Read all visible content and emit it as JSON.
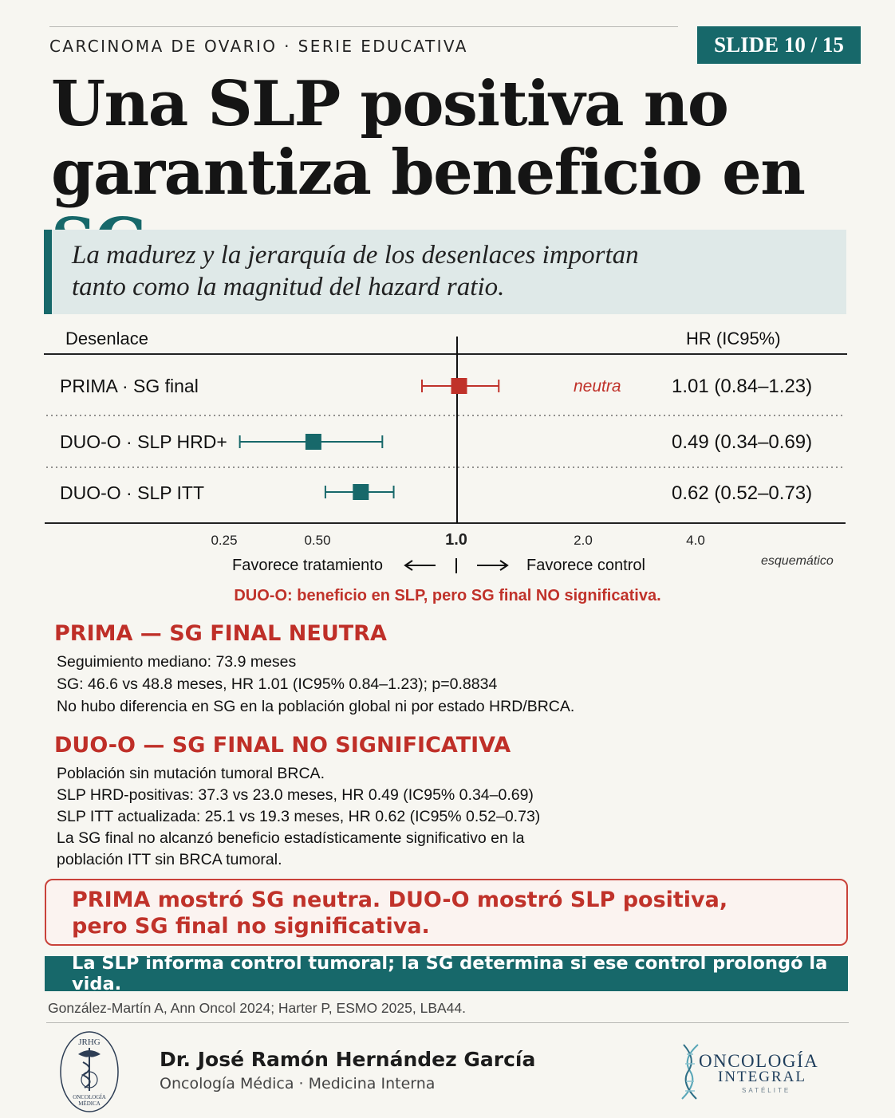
{
  "header": {
    "series": "CARCINOMA DE OVARIO · SERIE EDUCATIVA",
    "slide": "SLIDE 10 / 15"
  },
  "title": {
    "line1": "Una SLP positiva no",
    "line2_main": "garantiza beneficio en ",
    "line2_accent": "SG"
  },
  "subtitle": {
    "line1": "La madurez y la jerarquía de los desenlaces importan",
    "line2": "tanto como la magnitud del hazard ratio."
  },
  "chart_data": {
    "type": "forest",
    "scale": "log",
    "columns": {
      "outcome": "Desenlace",
      "estimate": "HR (IC95%)"
    },
    "rows": [
      {
        "label": "PRIMA · SG final",
        "hr": 1.01,
        "lo": 0.84,
        "hi": 1.23,
        "text": "1.01 (0.84–1.23)",
        "note": "neutra",
        "color": "#c0322a"
      },
      {
        "label": "DUO-O · SLP HRD+",
        "hr": 0.49,
        "lo": 0.34,
        "hi": 0.69,
        "text": "0.49 (0.34–0.69)",
        "note": "",
        "color": "#17686a"
      },
      {
        "label": "DUO-O · SLP ITT",
        "hr": 0.62,
        "lo": 0.52,
        "hi": 0.73,
        "text": "0.62 (0.52–0.73)",
        "note": "",
        "color": "#17686a"
      }
    ],
    "reference_line": 1.0,
    "ticks": [
      {
        "label": "0.25"
      },
      {
        "label": "0.50"
      },
      {
        "label": "1.0"
      },
      {
        "label": "2.0"
      },
      {
        "label": "4.0"
      }
    ],
    "favors_left": "Favorece tratamiento",
    "favors_right": "Favorece control",
    "footnote": "esquemático"
  },
  "chart_note": "DUO-O: beneficio en SLP, pero SG final NO significativa.",
  "sections": [
    {
      "heading": "PRIMA — SG FINAL NEUTRA",
      "lines": [
        "Seguimiento mediano: 73.9 meses",
        "SG: 46.6 vs 48.8 meses, HR 1.01 (IC95% 0.84–1.23); p=0.8834",
        "No hubo diferencia en SG en la población global ni por estado HRD/BRCA."
      ]
    },
    {
      "heading": "DUO-O — SG FINAL NO SIGNIFICATIVA",
      "lines": [
        "Población sin mutación tumoral BRCA.",
        "SLP HRD-positivas: 37.3 vs 23.0 meses, HR 0.49 (IC95% 0.34–0.69)",
        "SLP ITT actualizada: 25.1 vs 19.3 meses, HR 0.62 (IC95% 0.52–0.73)",
        "La SG final no alcanzó beneficio estadísticamente significativo en la",
        "población ITT sin BRCA tumoral."
      ]
    }
  ],
  "callout": {
    "line1": "PRIMA mostró SG neutra. DUO-O mostró SLP positiva,",
    "line2": "pero SG final no significativa."
  },
  "banner": "La SLP informa control tumoral; la SG determina si ese control prolongó la vida.",
  "references": "González-Martín A, Ann Oncol 2024; Harter P, ESMO 2025, LBA44.",
  "footer": {
    "author": "Dr. José Ramón Hernández García",
    "role": "Oncología Médica · Medicina Interna",
    "logo_left_text": [
      "JRHG",
      "ONCOLOGÍA",
      "MÉDICA"
    ],
    "logo_right_text": [
      "ONCOLOGÍA",
      "INTEGRAL",
      "SATÉLITE"
    ]
  },
  "colors": {
    "teal": "#17686a",
    "red": "#c0322a"
  }
}
